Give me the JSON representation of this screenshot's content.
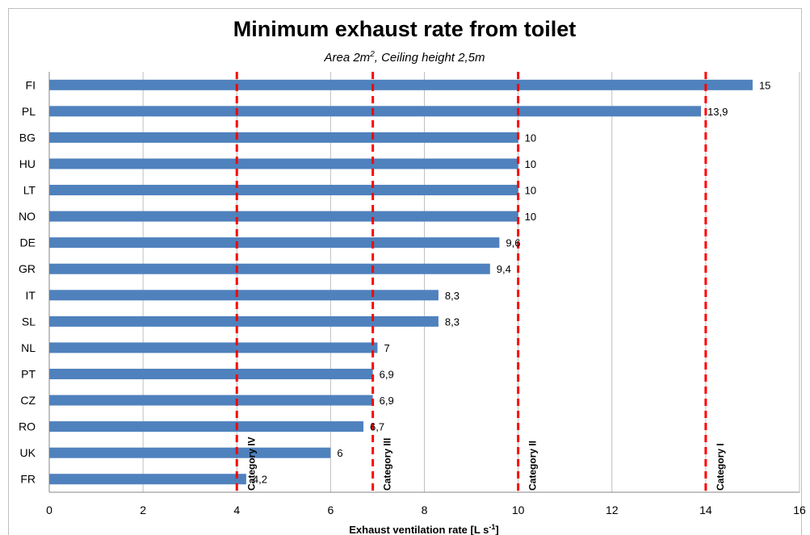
{
  "chart_data": {
    "type": "bar",
    "orientation": "horizontal",
    "title": "Minimum exhaust rate from toilet",
    "subtitle": {
      "prefix": "Area 2m",
      "superscript": "2",
      "suffix": ", Ceiling height 2,5m"
    },
    "xlabel": {
      "prefix": "Exhaust ventilation rate [L s",
      "superscript": "-1",
      "suffix": "]"
    },
    "xlim": [
      0,
      16
    ],
    "xticks": [
      0,
      2,
      4,
      6,
      8,
      10,
      12,
      14,
      16
    ],
    "grid": "vertical",
    "bar_color": "#4f81bd",
    "categories": [
      "FI",
      "PL",
      "BG",
      "HU",
      "LT",
      "NO",
      "DE",
      "GR",
      "IT",
      "SL",
      "NL",
      "PT",
      "CZ",
      "RO",
      "UK",
      "FR"
    ],
    "values": [
      15,
      13.9,
      10,
      10,
      10,
      10,
      9.6,
      9.4,
      8.3,
      8.3,
      7,
      6.9,
      6.9,
      6.7,
      6,
      4.2
    ],
    "value_labels": [
      "15",
      "13,9",
      "10",
      "10",
      "10",
      "10",
      "9,6",
      "9,4",
      "8,3",
      "8,3",
      "7",
      "6,9",
      "6,9",
      "6,7",
      "6",
      "4,2"
    ],
    "reference_lines": [
      {
        "label": "Category IV",
        "value": 4
      },
      {
        "label": "Category III",
        "value": 6.9
      },
      {
        "label": "Category II",
        "value": 10
      },
      {
        "label": "Category I",
        "value": 14
      }
    ],
    "reference_line_color": "#ff0000"
  }
}
